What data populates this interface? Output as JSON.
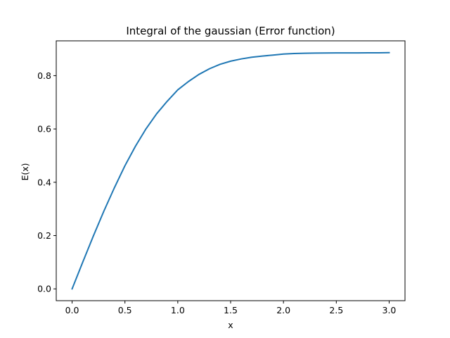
{
  "chart_data": {
    "type": "line",
    "title": "Integral of the gaussian (Error function)",
    "xlabel": "x",
    "ylabel": "E(x)",
    "xlim": [
      -0.15,
      3.15
    ],
    "ylim": [
      -0.0443,
      0.9306
    ],
    "xticks": [
      0.0,
      0.5,
      1.0,
      1.5,
      2.0,
      2.5,
      3.0
    ],
    "xtick_labels": [
      "0.0",
      "0.5",
      "1.0",
      "1.5",
      "2.0",
      "2.5",
      "3.0"
    ],
    "yticks": [
      0.0,
      0.2,
      0.4,
      0.6,
      0.8
    ],
    "ytick_labels": [
      "0.0",
      "0.2",
      "0.4",
      "0.6",
      "0.8"
    ],
    "grid": false,
    "legend": "none",
    "colors": {
      "line": "#1f77b4",
      "axes": "#000000",
      "background": "#ffffff"
    },
    "series": [
      {
        "x": [
          0.0,
          0.1,
          0.2,
          0.3,
          0.4,
          0.5,
          0.6,
          0.7,
          0.8,
          0.9,
          1.0,
          1.1,
          1.2,
          1.3,
          1.4,
          1.5,
          1.6,
          1.7,
          1.8,
          1.9,
          2.0,
          2.1,
          2.2,
          2.3,
          2.4,
          2.5,
          2.6,
          2.7,
          2.8,
          2.9,
          3.0
        ],
        "y": [
          0.0,
          0.0997,
          0.1974,
          0.2913,
          0.3794,
          0.4621,
          0.5356,
          0.6009,
          0.657,
          0.704,
          0.7468,
          0.7777,
          0.8046,
          0.8259,
          0.8425,
          0.8543,
          0.8627,
          0.8691,
          0.8736,
          0.877,
          0.8811,
          0.883,
          0.884,
          0.8846,
          0.885,
          0.8852,
          0.8854,
          0.8855,
          0.8856,
          0.8857,
          0.8862
        ]
      }
    ]
  }
}
